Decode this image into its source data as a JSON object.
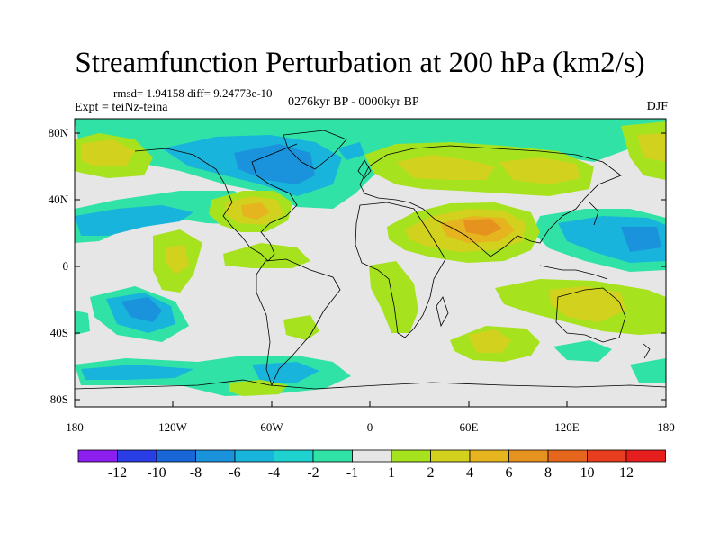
{
  "title": "Streamfunction Perturbation at 200 hPa (km2/s)",
  "subtitle_stats": "rmsd= 1.94158 diff= 9.24773e-10",
  "experiment": "Expt = teiNz-teina",
  "period": "0276kyr BP - 0000kyr BP",
  "season": "DJF",
  "lat_labels": [
    "80N",
    "40N",
    "0",
    "40S",
    "80S"
  ],
  "lon_labels": [
    "180",
    "120W",
    "60W",
    "0",
    "60E",
    "120E",
    "180"
  ],
  "colorbar": {
    "labels": [
      "-12",
      "-10",
      "-8",
      "-6",
      "-4",
      "-2",
      "-1",
      "1",
      "2",
      "4",
      "6",
      "8",
      "10",
      "12"
    ],
    "colors": [
      "#8d1ef0",
      "#2a3ee6",
      "#1866d8",
      "#1a92dc",
      "#18b4dc",
      "#1ed2d0",
      "#30e2a6",
      "#e6e6e6",
      "#a6e21e",
      "#d2d21e",
      "#e6b41e",
      "#e6921e",
      "#e6661e",
      "#e63e1e",
      "#e61e1e"
    ]
  },
  "colors": {
    "background": "#e6e6e6",
    "coast": "#000000"
  }
}
